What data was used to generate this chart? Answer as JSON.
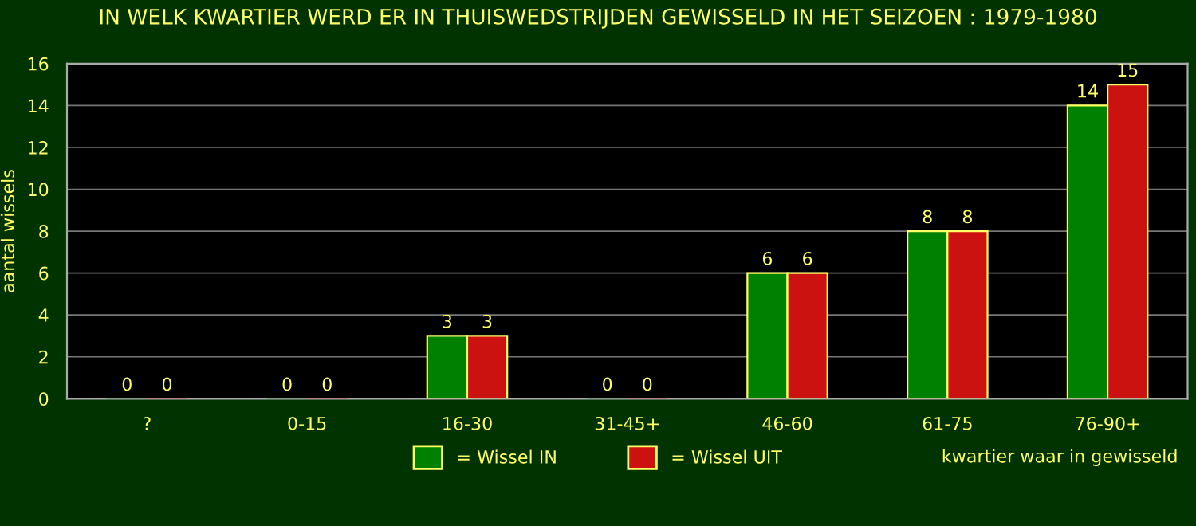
{
  "chart_data": {
    "type": "bar",
    "title": "IN WELK KWARTIER WERD ER IN THUISWEDSTRIJDEN GEWISSELD IN HET SEIZOEN : 1979-1980",
    "xlabel": "kwartier waar in gewisseld",
    "ylabel": "aantal wissels",
    "categories": [
      "?",
      "0-15",
      "16-30",
      "31-45+",
      "46-60",
      "61-75",
      "76-90+"
    ],
    "series": [
      {
        "name": "= Wissel IN",
        "color": "#008000",
        "values": [
          0,
          0,
          3,
          0,
          6,
          8,
          14
        ]
      },
      {
        "name": "= Wissel UIT",
        "color": "#cc1111",
        "values": [
          0,
          0,
          3,
          0,
          6,
          8,
          15
        ]
      }
    ],
    "ylim": [
      0,
      16
    ],
    "yticks": [
      0,
      2,
      4,
      6,
      8,
      10,
      12,
      14,
      16
    ],
    "grid": "y",
    "legend": "bottom",
    "data_labels": true
  }
}
